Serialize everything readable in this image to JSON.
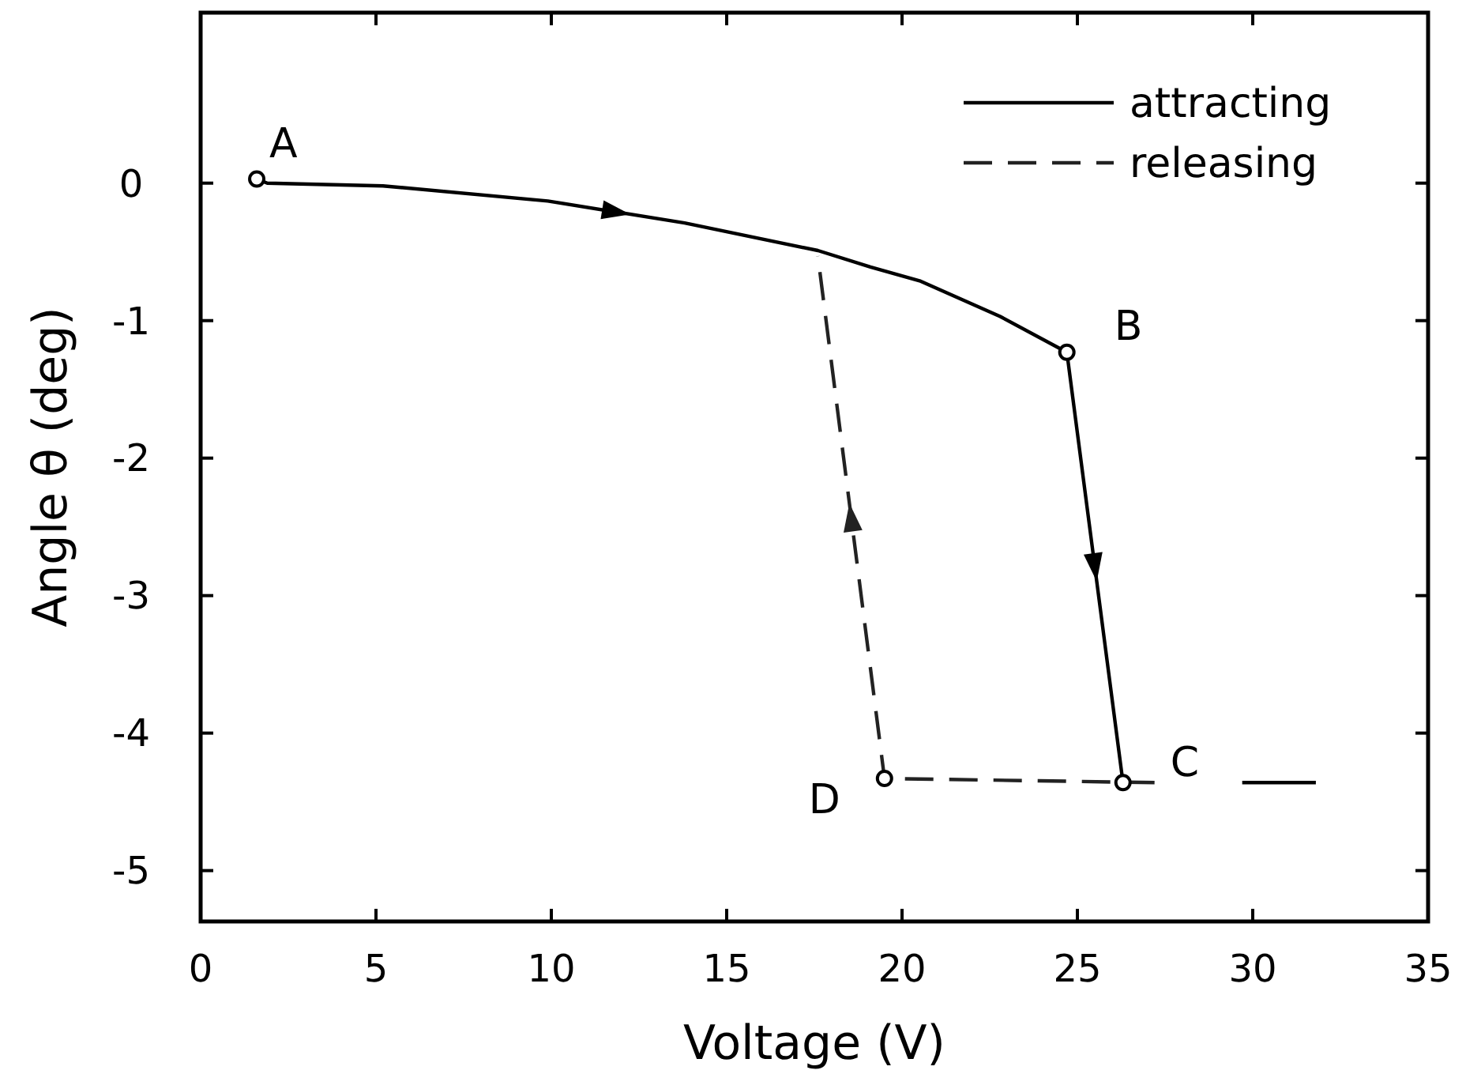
{
  "chart_data": {
    "type": "line",
    "xlabel": "Voltage (V)",
    "ylabel": "Angle θ (deg)",
    "xlim": [
      0,
      35
    ],
    "ylim": [
      -5.37,
      1.24
    ],
    "xticks": [
      0,
      5,
      10,
      15,
      20,
      25,
      30,
      35
    ],
    "yticks": [
      0,
      -1,
      -2,
      -3,
      -4,
      -5
    ],
    "grid": false,
    "legend": "top right",
    "marker": "none",
    "series": [
      {
        "name": "attracting",
        "color": "#000000",
        "line_style": "solid",
        "x": [
          1.6,
          1.9,
          5.2,
          9.9,
          13.8,
          17.6,
          19.1,
          20.5,
          22.8,
          24.7,
          26.3,
          null,
          29.7,
          31.8
        ],
        "values": [
          0.03,
          0,
          -0.02,
          -0.13,
          -0.29,
          -0.49,
          -0.61,
          -0.71,
          -0.97,
          -1.23,
          -4.36,
          null,
          -4.36,
          -4.36
        ]
      },
      {
        "name": "releasing",
        "color": "#222222",
        "line_style": "dashed",
        "x": [
          27.2,
          19.5,
          17.6
        ],
        "values": [
          -4.36,
          -4.33,
          -0.53
        ]
      }
    ],
    "annotations": [
      {
        "text": "A",
        "x": 1.6,
        "y": 0.03
      },
      {
        "text": "B",
        "x": 24.7,
        "y": -1.23
      },
      {
        "text": "C",
        "x": 26.3,
        "y": -4.36
      },
      {
        "text": "D",
        "x": 19.5,
        "y": -4.33
      }
    ]
  }
}
